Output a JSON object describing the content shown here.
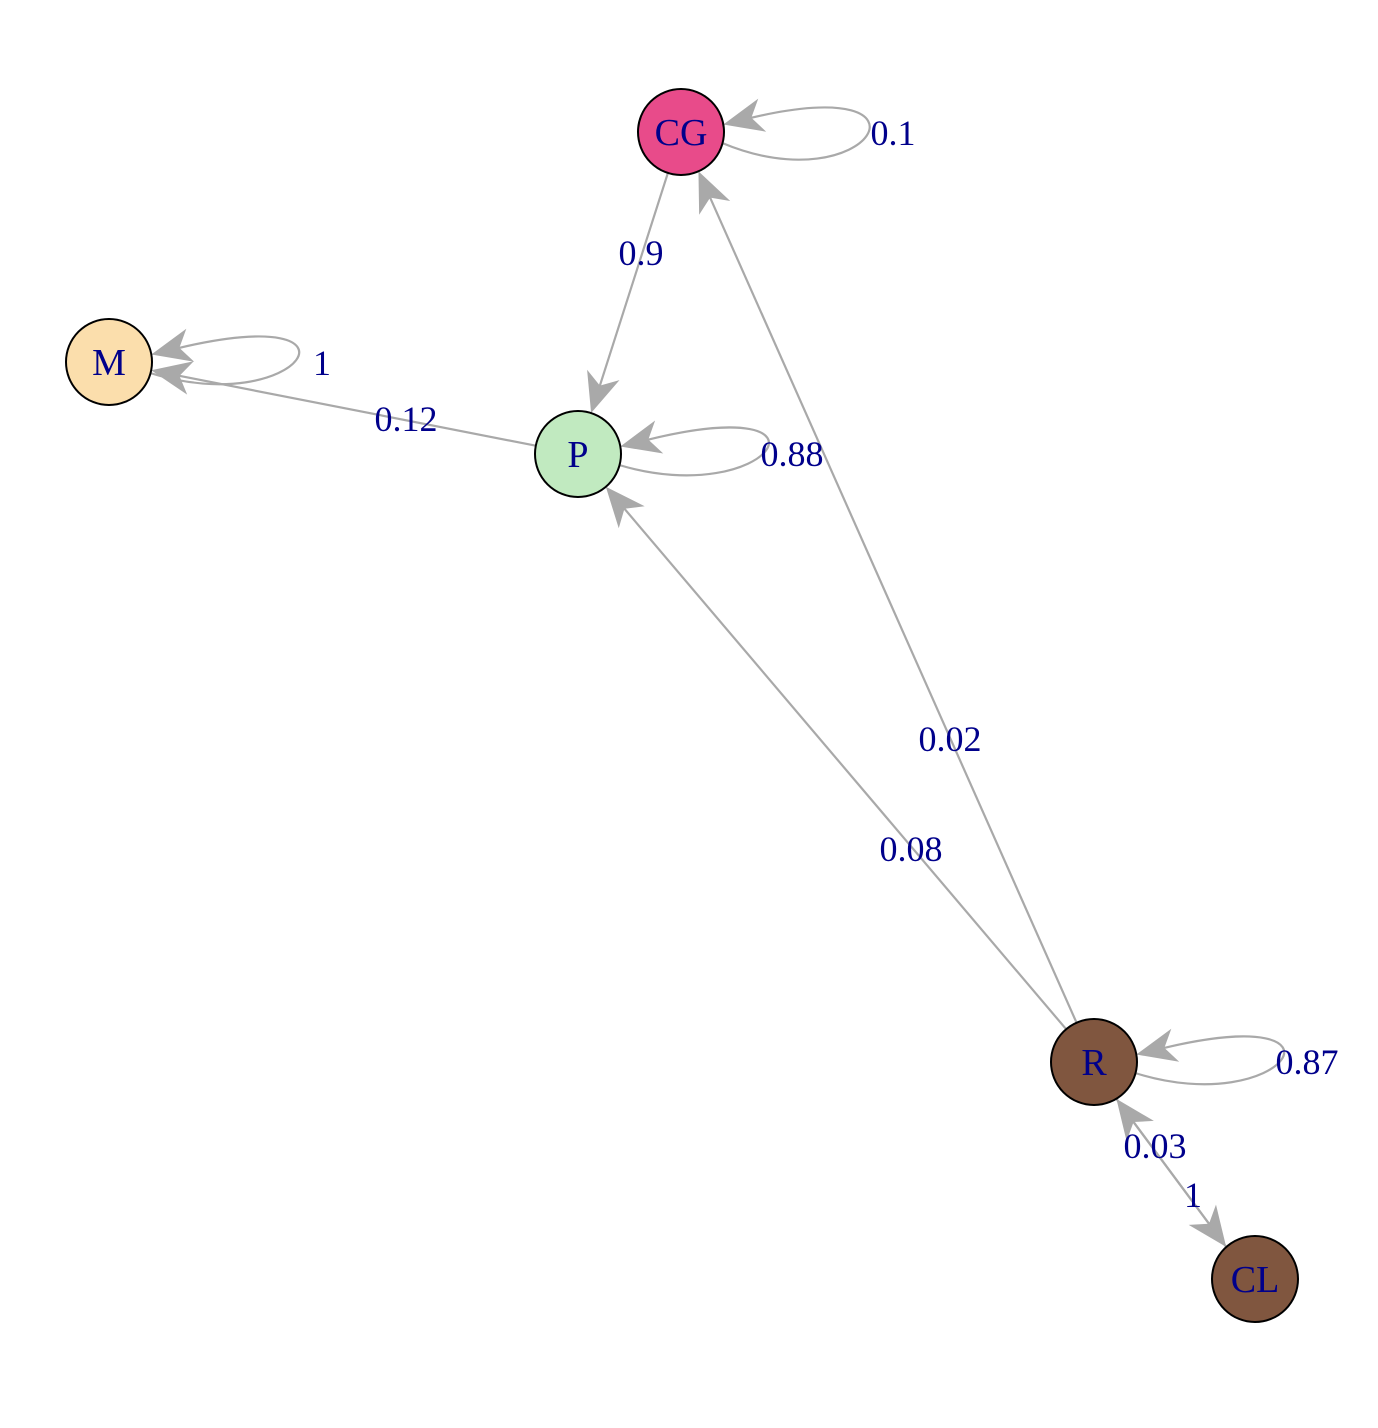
{
  "colors": {
    "edge": "#a9a9a9",
    "label": "#00008b",
    "node_border": "#000000"
  },
  "nodes": [
    {
      "id": "CG",
      "label": "CG",
      "fill": "#e84b8a"
    },
    {
      "id": "M",
      "label": "M",
      "fill": "#fbdeac"
    },
    {
      "id": "P",
      "label": "P",
      "fill": "#c1eac0"
    },
    {
      "id": "R",
      "label": "R",
      "fill": "#80563f"
    },
    {
      "id": "CL",
      "label": "CL",
      "fill": "#80563f"
    }
  ],
  "edges": [
    {
      "id": "cg-cg",
      "from": "CG",
      "to": "CG",
      "weight": "0.1"
    },
    {
      "id": "cg-p",
      "from": "CG",
      "to": "P",
      "weight": "0.9"
    },
    {
      "id": "m-m",
      "from": "M",
      "to": "M",
      "weight": "1"
    },
    {
      "id": "p-m",
      "from": "P",
      "to": "M",
      "weight": "0.12"
    },
    {
      "id": "p-p",
      "from": "P",
      "to": "P",
      "weight": "0.88"
    },
    {
      "id": "r-cg",
      "from": "R",
      "to": "CG",
      "weight": "0.02"
    },
    {
      "id": "r-p",
      "from": "R",
      "to": "P",
      "weight": "0.08"
    },
    {
      "id": "r-r",
      "from": "R",
      "to": "R",
      "weight": "0.87"
    },
    {
      "id": "r-cl",
      "from": "R",
      "to": "CL",
      "weight": "1"
    },
    {
      "id": "cl-r",
      "from": "CL",
      "to": "R",
      "weight": "0.03"
    }
  ]
}
